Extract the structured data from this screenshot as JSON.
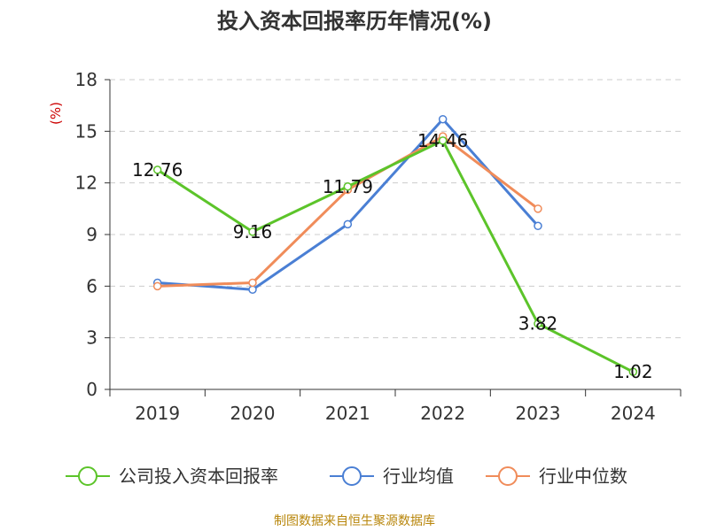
{
  "chart_data": {
    "type": "line",
    "title": "投入资本回报率历年情况(%)",
    "ylabel": "(%)",
    "xlabel": "",
    "categories": [
      "2019",
      "2020",
      "2021",
      "2022",
      "2023",
      "2024"
    ],
    "ylim": [
      0,
      18
    ],
    "yticks": [
      0,
      3,
      6,
      9,
      12,
      15,
      18
    ],
    "grid": true,
    "legend_position": "bottom",
    "series": [
      {
        "name": "公司投入资本回报率",
        "color": "#5cc42a",
        "values": [
          12.76,
          9.16,
          11.79,
          14.46,
          3.82,
          1.02
        ],
        "labels": [
          "12.76",
          "9.16",
          "11.79",
          "14.46",
          "3.82",
          "1.02"
        ]
      },
      {
        "name": "行业均值",
        "color": "#4a7fd4",
        "values": [
          6.2,
          5.8,
          9.6,
          15.7,
          9.5,
          null
        ]
      },
      {
        "name": "行业中位数",
        "color": "#f08c5a",
        "values": [
          6.0,
          6.2,
          11.6,
          14.7,
          10.5,
          null
        ]
      }
    ],
    "unit_color": "#cc0000"
  },
  "footer": {
    "source": "制图数据来自恒生聚源数据库"
  }
}
